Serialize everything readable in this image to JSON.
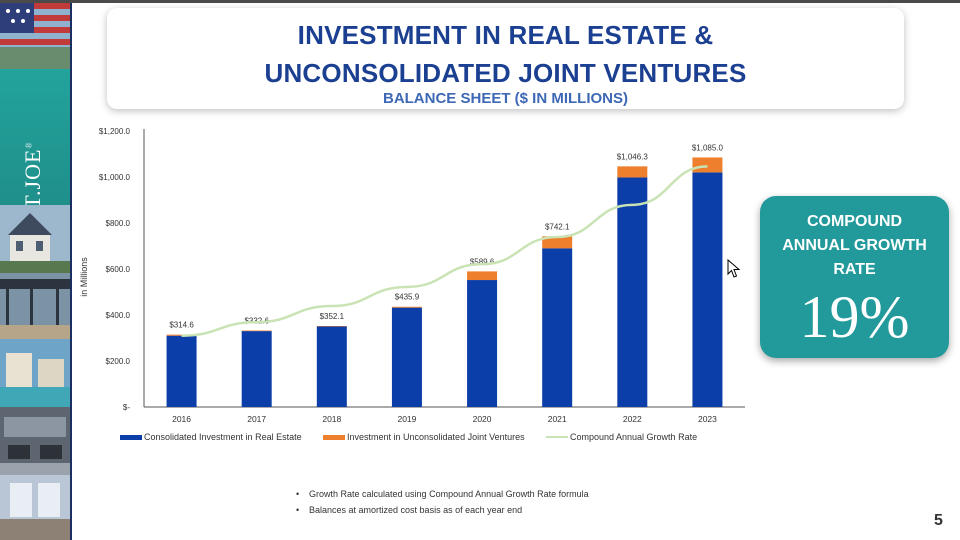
{
  "slide": {
    "title_line1": "INVESTMENT IN REAL ESTATE &",
    "title_line2": "UNCONSOLIDATED JOINT VENTURES",
    "subtitle": "BALANCE SHEET ($ IN MILLIONS)",
    "page_number": "5",
    "logo_text": "ST.JOE",
    "logo_trademark": "®"
  },
  "cagr": {
    "label_line1": "COMPOUND",
    "label_line2": "ANNUAL GROWTH",
    "label_line3": "RATE",
    "value": "19%"
  },
  "notes": [
    "Growth Rate calculated using Compound Annual Growth Rate formula",
    "Balances at amortized cost basis as of each year end"
  ],
  "colors": {
    "title": "#1b3f91",
    "consolidated": "#0b3ea8",
    "unconsolidated": "#ee7f2d",
    "cagr_line": "#c9e3b5",
    "cagr_card": "#22999b"
  },
  "chart_data": {
    "type": "bar",
    "stacked": true,
    "title": "",
    "xlabel": "",
    "ylabel": "in Millions",
    "ylim": [
      0,
      1200
    ],
    "yticks": [
      0,
      200,
      400,
      600,
      800,
      1000,
      1200
    ],
    "ytick_labels": [
      "$-",
      "$200.0",
      "$400.0",
      "$600.0",
      "$800.0",
      "$1,000.0",
      "$1,200.0"
    ],
    "categories": [
      "2016",
      "2017",
      "2018",
      "2019",
      "2020",
      "2021",
      "2022",
      "2023"
    ],
    "series": [
      {
        "name": "Consolidated Investment in Real Estate",
        "type": "bar",
        "color": "#0b3ea8",
        "values": [
          310,
          330,
          350,
          432,
          552,
          690,
          998,
          1020
        ]
      },
      {
        "name": "Investment in Unconsolidated Joint Ventures",
        "type": "bar",
        "color": "#ee7f2d",
        "values": [
          4.6,
          2.6,
          2.1,
          3.9,
          37.6,
          52.1,
          48.3,
          65.0
        ]
      },
      {
        "name": "Compound Annual Growth Rate",
        "type": "line",
        "color": "#c9e3b5",
        "values": [
          310,
          369,
          439,
          522,
          621,
          739,
          879,
          1046
        ]
      }
    ],
    "total_labels": [
      "$314.6",
      "$332.6",
      "$352.1",
      "$435.9",
      "$589.6",
      "$742.1",
      "$1,046.3",
      "$1,085.0"
    ],
    "grid": false,
    "legend_position": "bottom"
  }
}
